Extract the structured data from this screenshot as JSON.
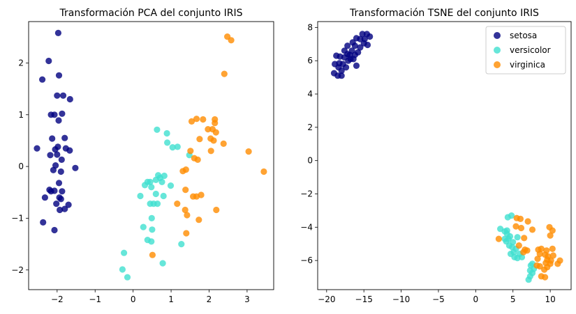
{
  "colors": {
    "setosa": "#000080",
    "versicolor": "#40e0d0",
    "virginica": "#ff8c00"
  },
  "chart_data": [
    {
      "type": "scatter",
      "title": "Transformación PCA del conjunto IRIS",
      "xlim": [
        -2.75,
        3.7
      ],
      "ylim": [
        -2.38,
        2.8
      ],
      "xticks": [
        -2,
        -1,
        0,
        1,
        2,
        3
      ],
      "xtick_labels": [
        "−2",
        "−1",
        "0",
        "1",
        "2",
        "3"
      ],
      "yticks": [
        -2,
        -1,
        0,
        1,
        2
      ],
      "ytick_labels": [
        "−2",
        "−1",
        "0",
        "1",
        "2"
      ],
      "legend": null,
      "series": [
        {
          "name": "setosa",
          "color": "#000080",
          "points": [
            [
              -1.97,
              2.58
            ],
            [
              -2.22,
              2.04
            ],
            [
              -2.39,
              1.68
            ],
            [
              -1.95,
              1.76
            ],
            [
              -2.0,
              1.37
            ],
            [
              -1.84,
              1.37
            ],
            [
              -1.66,
              1.3
            ],
            [
              -2.16,
              1.0
            ],
            [
              -2.07,
              1.0
            ],
            [
              -1.87,
              1.02
            ],
            [
              -1.96,
              0.89
            ],
            [
              -1.8,
              0.55
            ],
            [
              -2.13,
              0.54
            ],
            [
              -1.77,
              0.35
            ],
            [
              -1.67,
              0.31
            ],
            [
              -2.53,
              0.35
            ],
            [
              -1.98,
              0.38
            ],
            [
              -2.05,
              0.33
            ],
            [
              -2.0,
              0.23
            ],
            [
              -2.18,
              0.22
            ],
            [
              -1.88,
              0.13
            ],
            [
              -2.04,
              0.02
            ],
            [
              -1.52,
              -0.03
            ],
            [
              -2.1,
              -0.07
            ],
            [
              -1.9,
              -0.1
            ],
            [
              -1.95,
              -0.32
            ],
            [
              -2.2,
              -0.45
            ],
            [
              -2.16,
              -0.48
            ],
            [
              -2.07,
              -0.47
            ],
            [
              -1.87,
              -0.48
            ],
            [
              -2.32,
              -0.6
            ],
            [
              -1.94,
              -0.6
            ],
            [
              -1.9,
              -0.63
            ],
            [
              -2.02,
              -0.72
            ],
            [
              -1.7,
              -0.74
            ],
            [
              -1.8,
              -0.82
            ],
            [
              -1.93,
              -0.84
            ],
            [
              -2.37,
              -1.08
            ],
            [
              -2.07,
              -1.23
            ]
          ]
        },
        {
          "name": "versicolor",
          "color": "#40e0d0",
          "points": [
            [
              0.63,
              0.71
            ],
            [
              0.89,
              0.64
            ],
            [
              0.9,
              0.46
            ],
            [
              1.04,
              0.37
            ],
            [
              1.17,
              0.38
            ],
            [
              1.48,
              0.22
            ],
            [
              0.66,
              -0.17
            ],
            [
              0.82,
              -0.18
            ],
            [
              0.71,
              -0.22
            ],
            [
              0.6,
              -0.26
            ],
            [
              0.38,
              -0.3
            ],
            [
              0.45,
              -0.3
            ],
            [
              0.76,
              -0.3
            ],
            [
              0.31,
              -0.36
            ],
            [
              0.99,
              -0.37
            ],
            [
              0.48,
              -0.4
            ],
            [
              0.6,
              -0.53
            ],
            [
              0.19,
              -0.57
            ],
            [
              0.8,
              -0.57
            ],
            [
              0.54,
              -0.72
            ],
            [
              0.64,
              -0.72
            ],
            [
              0.45,
              -0.72
            ],
            [
              0.49,
              -1.0
            ],
            [
              0.27,
              -1.17
            ],
            [
              0.5,
              -1.22
            ],
            [
              0.38,
              -1.42
            ],
            [
              0.48,
              -1.45
            ],
            [
              1.27,
              -1.5
            ],
            [
              -0.24,
              -1.67
            ],
            [
              0.78,
              -1.87
            ],
            [
              -0.28,
              -1.99
            ],
            [
              -0.15,
              -2.14
            ]
          ]
        },
        {
          "name": "virginica",
          "color": "#ff8c00",
          "points": [
            [
              2.48,
              2.51
            ],
            [
              2.58,
              2.44
            ],
            [
              2.4,
              1.79
            ],
            [
              1.67,
              0.92
            ],
            [
              1.84,
              0.91
            ],
            [
              2.15,
              0.91
            ],
            [
              2.15,
              0.84
            ],
            [
              1.54,
              0.87
            ],
            [
              1.97,
              0.72
            ],
            [
              2.09,
              0.72
            ],
            [
              2.18,
              0.66
            ],
            [
              1.75,
              0.53
            ],
            [
              2.04,
              0.54
            ],
            [
              2.12,
              0.5
            ],
            [
              2.38,
              0.44
            ],
            [
              1.51,
              0.3
            ],
            [
              2.05,
              0.3
            ],
            [
              3.04,
              0.29
            ],
            [
              1.61,
              0.16
            ],
            [
              1.7,
              0.13
            ],
            [
              1.39,
              -0.06
            ],
            [
              1.31,
              -0.09
            ],
            [
              3.44,
              -0.1
            ],
            [
              1.38,
              -0.45
            ],
            [
              1.58,
              -0.58
            ],
            [
              1.67,
              -0.58
            ],
            [
              1.79,
              -0.55
            ],
            [
              1.16,
              -0.72
            ],
            [
              1.37,
              -0.84
            ],
            [
              2.19,
              -0.84
            ],
            [
              1.42,
              -0.94
            ],
            [
              1.73,
              -1.03
            ],
            [
              1.4,
              -1.29
            ],
            [
              0.51,
              -1.71
            ]
          ]
        }
      ]
    },
    {
      "type": "scatter",
      "title": "Transformación TSNE del conjunto IRIS",
      "xlim": [
        -21.2,
        12.8
      ],
      "ylim": [
        -7.75,
        8.35
      ],
      "xticks": [
        -20,
        -15,
        -10,
        -5,
        0,
        5,
        10
      ],
      "xtick_labels": [
        "−20",
        "−15",
        "−10",
        "−5",
        "0",
        "5",
        "10"
      ],
      "yticks": [
        -6,
        -4,
        -2,
        0,
        2,
        4,
        6,
        8
      ],
      "ytick_labels": [
        "−6",
        "−4",
        "−2",
        "0",
        "2",
        "4",
        "6",
        "8"
      ],
      "legend": {
        "position": "top-right",
        "entries": [
          "setosa",
          "versicolor",
          "virginica"
        ]
      },
      "series": [
        {
          "name": "setosa",
          "color": "#000080",
          "points": [
            [
              -15.2,
              7.6
            ],
            [
              -14.6,
              7.6
            ],
            [
              -14.2,
              7.45
            ],
            [
              -16.0,
              7.35
            ],
            [
              -15.5,
              7.3
            ],
            [
              -14.9,
              7.3
            ],
            [
              -16.5,
              7.1
            ],
            [
              -15.0,
              7.05
            ],
            [
              -17.2,
              6.9
            ],
            [
              -16.2,
              6.9
            ],
            [
              -14.5,
              6.95
            ],
            [
              -15.5,
              6.8
            ],
            [
              -17.6,
              6.6
            ],
            [
              -16.6,
              6.6
            ],
            [
              -15.8,
              6.5
            ],
            [
              -17.2,
              6.4
            ],
            [
              -16.9,
              6.35
            ],
            [
              -16.2,
              6.35
            ],
            [
              -18.7,
              6.3
            ],
            [
              -18.2,
              6.25
            ],
            [
              -17.6,
              6.2
            ],
            [
              -16.8,
              6.1
            ],
            [
              -16.4,
              6.1
            ],
            [
              -17.1,
              6.0
            ],
            [
              -18.3,
              5.85
            ],
            [
              -18.9,
              5.8
            ],
            [
              -17.8,
              5.8
            ],
            [
              -16.0,
              5.7
            ],
            [
              -18.4,
              5.6
            ],
            [
              -17.4,
              5.6
            ],
            [
              -18.0,
              5.4
            ],
            [
              -19.0,
              5.25
            ],
            [
              -18.5,
              5.1
            ],
            [
              -18.0,
              5.1
            ]
          ]
        },
        {
          "name": "versicolor",
          "color": "#40e0d0",
          "points": [
            [
              4.8,
              -3.3
            ],
            [
              4.3,
              -3.4
            ],
            [
              4.2,
              -4.2
            ],
            [
              3.3,
              -4.1
            ],
            [
              3.9,
              -4.25
            ],
            [
              4.2,
              -4.4
            ],
            [
              4.6,
              -4.55
            ],
            [
              3.9,
              -4.7
            ],
            [
              4.1,
              -4.85
            ],
            [
              4.4,
              -4.7
            ],
            [
              5.6,
              -4.6
            ],
            [
              5.0,
              -4.9
            ],
            [
              4.5,
              -5.1
            ],
            [
              4.9,
              -5.2
            ],
            [
              5.4,
              -5.3
            ],
            [
              5.1,
              -5.5
            ],
            [
              4.7,
              -5.6
            ],
            [
              5.9,
              -5.6
            ],
            [
              5.2,
              -5.8
            ],
            [
              5.6,
              -5.85
            ],
            [
              6.2,
              -5.8
            ],
            [
              7.6,
              -6.2
            ],
            [
              7.4,
              -6.3
            ],
            [
              7.8,
              -6.5
            ],
            [
              7.3,
              -6.6
            ],
            [
              7.6,
              -6.75
            ],
            [
              7.3,
              -6.95
            ],
            [
              7.1,
              -7.15
            ]
          ]
        },
        {
          "name": "virginica",
          "color": "#ff8c00",
          "points": [
            [
              5.5,
              -3.45
            ],
            [
              6.0,
              -3.5
            ],
            [
              7.0,
              -3.65
            ],
            [
              5.4,
              -3.95
            ],
            [
              6.1,
              -4.05
            ],
            [
              7.6,
              -4.15
            ],
            [
              9.9,
              -4.0
            ],
            [
              10.3,
              -4.2
            ],
            [
              6.5,
              -4.65
            ],
            [
              10.0,
              -4.5
            ],
            [
              3.1,
              -4.7
            ],
            [
              5.8,
              -5.1
            ],
            [
              6.6,
              -5.35
            ],
            [
              6.9,
              -5.4
            ],
            [
              8.4,
              -5.35
            ],
            [
              8.8,
              -5.3
            ],
            [
              9.5,
              -5.4
            ],
            [
              10.3,
              -5.3
            ],
            [
              6.4,
              -5.5
            ],
            [
              8.6,
              -5.6
            ],
            [
              9.3,
              -5.65
            ],
            [
              9.7,
              -5.75
            ],
            [
              10.4,
              -5.7
            ],
            [
              8.3,
              -5.9
            ],
            [
              9.6,
              -5.95
            ],
            [
              10.1,
              -6.0
            ],
            [
              11.3,
              -6.0
            ],
            [
              9.4,
              -6.15
            ],
            [
              10.0,
              -6.2
            ],
            [
              11.0,
              -6.2
            ],
            [
              8.2,
              -6.3
            ],
            [
              8.6,
              -6.35
            ],
            [
              9.6,
              -6.4
            ],
            [
              9.2,
              -6.55
            ],
            [
              8.8,
              -6.95
            ],
            [
              9.3,
              -7.0
            ]
          ]
        }
      ]
    }
  ]
}
